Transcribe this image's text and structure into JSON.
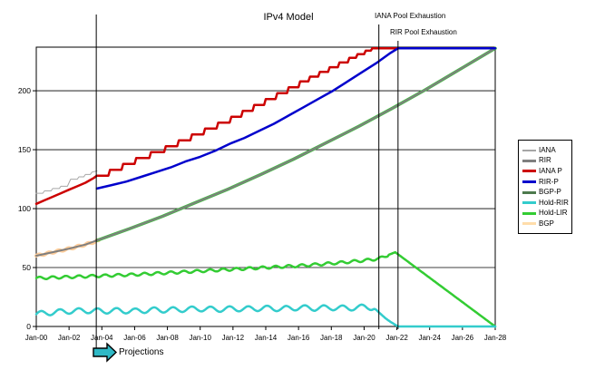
{
  "window": {
    "background": "#FFFFFF"
  },
  "chart_data": {
    "type": "line",
    "title": "IPv4 Model",
    "x_axis": {
      "start_year": 2000,
      "end_year": 2028,
      "tick_step_years": 2,
      "tick_labels": [
        "Jan-00",
        "Jan-02",
        "Jan-04",
        "Jan-06",
        "Jan-08",
        "Jan-10",
        "Jan-12",
        "Jan-14",
        "Jan-16",
        "Jan-18",
        "Jan-20",
        "Jan-22",
        "Jan-24",
        "Jan-26",
        "Jan-28"
      ]
    },
    "y_axis": {
      "ticks": [
        0,
        50,
        100,
        150,
        200
      ],
      "max": 237
    },
    "grid": {
      "horizontal": true,
      "vertical": false,
      "line_color": "#000000"
    },
    "annotations": {
      "projection_line": {
        "year": 2003.66,
        "label": "Projections",
        "arrow_color": "#2FB9C6"
      },
      "iana_exhaustion": {
        "year": 2020.9,
        "label": "IANA Pool Exhaustion"
      },
      "rir_exhaustion": {
        "year": 2022.07,
        "label": "RIR Pool Exhaustion"
      }
    },
    "legend": [
      {
        "label": "IANA",
        "color": "#A6A6A6",
        "thickness": 1.5
      },
      {
        "label": "RIR",
        "color": "#7F7F7F",
        "thickness": 3
      },
      {
        "label": "IANA P",
        "color": "#CC0000",
        "thickness": 3
      },
      {
        "label": "RIR-P",
        "color": "#0000CC",
        "thickness": 3
      },
      {
        "label": "BGP-P",
        "color": "#4D7A4D",
        "thickness": 3
      },
      {
        "label": "Hold-RIR",
        "color": "#33CCCC",
        "thickness": 3
      },
      {
        "label": "Hold-LIR",
        "color": "#33CC33",
        "thickness": 3
      },
      {
        "label": "BGP",
        "color": "#FFDDAA",
        "thickness": 3
      }
    ],
    "series": [
      {
        "name": "BGP",
        "color": "#FFCC99",
        "width": 4,
        "wobble": {
          "amp": 0.7,
          "period": 0.6,
          "until": 2003.8
        },
        "points": [
          [
            2000,
            60
          ],
          [
            2001,
            63
          ],
          [
            2002,
            66
          ],
          [
            2003,
            69.5
          ],
          [
            2003.8,
            73
          ]
        ]
      },
      {
        "name": "BGP-P",
        "color": "#44BB44",
        "width": 3.5,
        "points": [
          [
            2003.7,
            73
          ],
          [
            2005.7,
            83
          ],
          [
            2007.7,
            93.5
          ],
          [
            2009.7,
            105
          ],
          [
            2011.7,
            116.5
          ],
          [
            2013.7,
            129
          ],
          [
            2015.7,
            142
          ],
          [
            2017.7,
            156
          ],
          [
            2019.7,
            170
          ],
          [
            2021.7,
            185
          ],
          [
            2023.7,
            200.5
          ],
          [
            2025.7,
            217
          ],
          [
            2027.7,
            233.5
          ],
          [
            2028,
            236
          ]
        ]
      },
      {
        "name": "RIR",
        "color": "#7F7F7F",
        "width": 2,
        "points": [
          [
            2000,
            60
          ],
          [
            2001,
            63
          ],
          [
            2002,
            66
          ],
          [
            2003,
            69.5
          ],
          [
            2003.7,
            73
          ],
          [
            2005.7,
            83
          ],
          [
            2007.7,
            93.5
          ],
          [
            2009.7,
            105
          ],
          [
            2011.7,
            116.5
          ],
          [
            2013.7,
            129
          ],
          [
            2015.7,
            142
          ],
          [
            2017.7,
            156
          ],
          [
            2019.7,
            170
          ],
          [
            2021.7,
            185
          ],
          [
            2023.7,
            200.5
          ],
          [
            2025.7,
            217
          ],
          [
            2027.7,
            233.5
          ],
          [
            2028,
            236
          ]
        ]
      },
      {
        "name": "IANA",
        "color": "#A6A6A6",
        "width": 1,
        "points": [
          [
            2000,
            113
          ],
          [
            2000.4,
            113
          ],
          [
            2000.5,
            115
          ],
          [
            2000.9,
            115
          ],
          [
            2001,
            117
          ],
          [
            2001.4,
            117
          ],
          [
            2001.5,
            119
          ],
          [
            2001.9,
            119
          ],
          [
            2002,
            122
          ],
          [
            2002.1,
            125
          ],
          [
            2002.5,
            125
          ],
          [
            2002.6,
            127
          ],
          [
            2002.9,
            127
          ],
          [
            2003,
            129
          ],
          [
            2003.3,
            129
          ],
          [
            2003.4,
            131
          ],
          [
            2003.7,
            132
          ]
        ]
      },
      {
        "name": "IANA P",
        "color": "#CC0000",
        "width": 2.5,
        "points": [
          [
            2000,
            104
          ],
          [
            2000.5,
            107
          ],
          [
            2001,
            110
          ],
          [
            2001.5,
            113
          ],
          [
            2002,
            116
          ],
          [
            2002.5,
            119
          ],
          [
            2003,
            122
          ],
          [
            2003.5,
            126
          ],
          [
            2003.7,
            128
          ],
          [
            2004.4,
            128
          ],
          [
            2004.5,
            133
          ],
          [
            2005.2,
            133
          ],
          [
            2005.3,
            138
          ],
          [
            2006,
            138
          ],
          [
            2006.1,
            143
          ],
          [
            2006.9,
            143
          ],
          [
            2007,
            148
          ],
          [
            2007.8,
            148
          ],
          [
            2007.9,
            153
          ],
          [
            2008.6,
            153
          ],
          [
            2008.7,
            158
          ],
          [
            2009.4,
            158
          ],
          [
            2009.5,
            163
          ],
          [
            2010.2,
            163
          ],
          [
            2010.3,
            168
          ],
          [
            2011,
            168
          ],
          [
            2011.1,
            173
          ],
          [
            2011.8,
            173
          ],
          [
            2011.9,
            178
          ],
          [
            2012.5,
            178
          ],
          [
            2012.6,
            183
          ],
          [
            2013.2,
            183
          ],
          [
            2013.3,
            188
          ],
          [
            2013.9,
            188
          ],
          [
            2014,
            193
          ],
          [
            2014.6,
            193
          ],
          [
            2014.7,
            198
          ],
          [
            2015.3,
            198
          ],
          [
            2015.4,
            203
          ],
          [
            2016,
            203
          ],
          [
            2016.1,
            208
          ],
          [
            2016.6,
            208
          ],
          [
            2016.7,
            212
          ],
          [
            2017.2,
            212
          ],
          [
            2017.3,
            216
          ],
          [
            2017.8,
            216
          ],
          [
            2017.9,
            220
          ],
          [
            2018.4,
            220
          ],
          [
            2018.5,
            224
          ],
          [
            2019,
            224
          ],
          [
            2019.1,
            228
          ],
          [
            2019.5,
            228
          ],
          [
            2019.6,
            231
          ],
          [
            2020,
            231
          ],
          [
            2020.1,
            234
          ],
          [
            2020.4,
            234
          ],
          [
            2020.5,
            236
          ],
          [
            2022.07,
            236
          ]
        ]
      },
      {
        "name": "RIR-P",
        "color": "#0000CC",
        "width": 2.5,
        "points": [
          [
            2003.7,
            117
          ],
          [
            2004.6,
            120
          ],
          [
            2005.5,
            123
          ],
          [
            2006.4,
            127
          ],
          [
            2007.3,
            131
          ],
          [
            2008.2,
            135
          ],
          [
            2009.1,
            140
          ],
          [
            2010,
            144
          ],
          [
            2010.9,
            149
          ],
          [
            2011.8,
            155
          ],
          [
            2012.7,
            160
          ],
          [
            2013.6,
            166
          ],
          [
            2014.5,
            172
          ],
          [
            2015.4,
            179
          ],
          [
            2016.3,
            186
          ],
          [
            2017.2,
            193
          ],
          [
            2018.1,
            200
          ],
          [
            2019,
            208
          ],
          [
            2019.9,
            216
          ],
          [
            2020.8,
            224
          ],
          [
            2021.6,
            232
          ],
          [
            2022.07,
            236
          ],
          [
            2028,
            236
          ]
        ]
      },
      {
        "name": "Hold-LIR",
        "color": "#33CC33",
        "width": 2.5,
        "wobble": {
          "amp": 1.1,
          "period": 0.8,
          "until": 2021.5
        },
        "points": [
          [
            2000,
            41
          ],
          [
            2002,
            42
          ],
          [
            2004,
            43
          ],
          [
            2006,
            44
          ],
          [
            2008,
            45.5
          ],
          [
            2010,
            47
          ],
          [
            2012,
            48.5
          ],
          [
            2014,
            50
          ],
          [
            2016,
            51.5
          ],
          [
            2018,
            53.5
          ],
          [
            2020,
            56
          ],
          [
            2020.9,
            57.5
          ],
          [
            2021.9,
            63
          ],
          [
            2028,
            0
          ]
        ]
      },
      {
        "name": "Hold-RIR",
        "color": "#33CCCC",
        "width": 2.5,
        "wobble": {
          "amp": 2.2,
          "period": 1.15,
          "until": 2020.7
        },
        "points": [
          [
            2000,
            10.5
          ],
          [
            2001,
            12
          ],
          [
            2002,
            13
          ],
          [
            2003,
            13.5
          ],
          [
            2004,
            13
          ],
          [
            2005,
            13.5
          ],
          [
            2006,
            13
          ],
          [
            2007,
            14
          ],
          [
            2008,
            14
          ],
          [
            2009,
            14.5
          ],
          [
            2010,
            15
          ],
          [
            2011,
            14.5
          ],
          [
            2012,
            15
          ],
          [
            2013,
            15
          ],
          [
            2014,
            15.5
          ],
          [
            2015,
            15
          ],
          [
            2016,
            16
          ],
          [
            2017,
            15.5
          ],
          [
            2018,
            16
          ],
          [
            2019,
            15.5
          ],
          [
            2020,
            16.5
          ],
          [
            2020.6,
            16
          ],
          [
            2020.9,
            12
          ],
          [
            2021.3,
            7
          ],
          [
            2021.6,
            4
          ],
          [
            2022.07,
            0
          ],
          [
            2028,
            0
          ]
        ]
      }
    ]
  }
}
